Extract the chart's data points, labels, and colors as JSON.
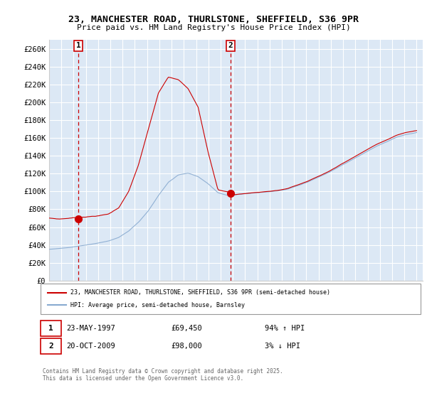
{
  "title": "23, MANCHESTER ROAD, THURLSTONE, SHEFFIELD, S36 9PR",
  "subtitle": "Price paid vs. HM Land Registry's House Price Index (HPI)",
  "xlim": [
    1995.0,
    2025.5
  ],
  "ylim": [
    0,
    270000
  ],
  "yticks": [
    0,
    20000,
    40000,
    60000,
    80000,
    100000,
    120000,
    140000,
    160000,
    180000,
    200000,
    220000,
    240000,
    260000
  ],
  "ytick_labels": [
    "£0",
    "£20K",
    "£40K",
    "£60K",
    "£80K",
    "£100K",
    "£120K",
    "£140K",
    "£160K",
    "£180K",
    "£200K",
    "£220K",
    "£240K",
    "£260K"
  ],
  "background_color": "#dce8f5",
  "grid_color": "#ffffff",
  "red_line_color": "#cc0000",
  "blue_line_color": "#88aad0",
  "vline_color": "#cc0000",
  "marker1_date": 1997.38,
  "marker2_date": 2009.8,
  "marker1_value": 69450,
  "marker2_value": 98000,
  "annotation1_date": "23-MAY-1997",
  "annotation1_price": "£69,450",
  "annotation1_hpi": "94% ↑ HPI",
  "annotation2_date": "20-OCT-2009",
  "annotation2_price": "£98,000",
  "annotation2_hpi": "3% ↓ HPI",
  "legend_label_red": "23, MANCHESTER ROAD, THURLSTONE, SHEFFIELD, S36 9PR (semi-detached house)",
  "legend_label_blue": "HPI: Average price, semi-detached house, Barnsley",
  "copyright_text": "Contains HM Land Registry data © Crown copyright and database right 2025.\nThis data is licensed under the Open Government Licence v3.0."
}
